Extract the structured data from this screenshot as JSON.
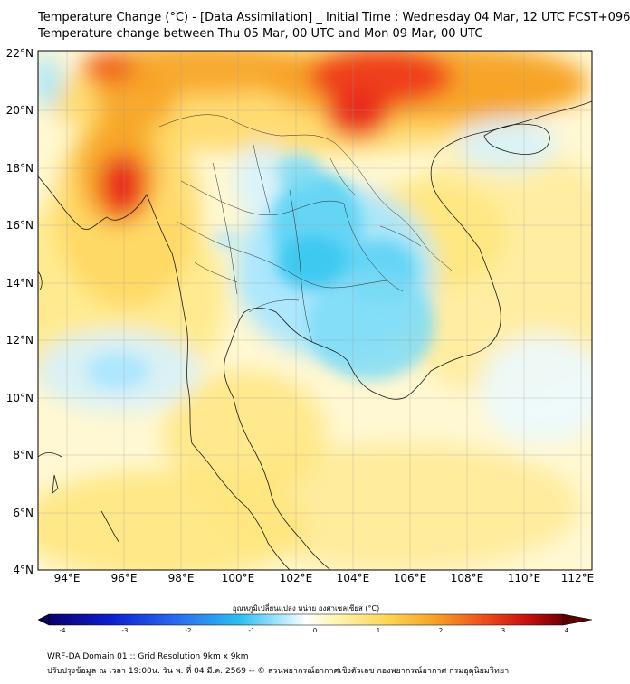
{
  "title_line1": "Temperature Change (°C) - [Data Assimilation] _ Initial Time : Wednesday 04 Mar, 12 UTC FCST+096",
  "title_line2": "Temperature change between Thu 05 Mar, 00 UTC and Mon 09 Mar, 00 UTC",
  "lat_labels": [
    "22°N",
    "20°N",
    "18°N",
    "16°N",
    "14°N",
    "12°N",
    "10°N",
    "8°N",
    "6°N",
    "4°N"
  ],
  "lon_labels": [
    "94°E",
    "96°E",
    "98°E",
    "100°E",
    "102°E",
    "104°E",
    "106°E",
    "108°E",
    "110°E",
    "112°E"
  ],
  "colorbar": {
    "label": "อุณหภูมิเปลี่ยนแปลง หน่วย องศาเซลเซียส (°C)",
    "ticks": [
      "-4",
      "-3",
      "-2",
      "-1",
      "0",
      "1",
      "2",
      "3",
      "4"
    ],
    "range": [
      -4,
      4
    ]
  },
  "footer_line1": "WRF-DA Domain 01 :: Grid Resolution 9km x 9km",
  "footer_line2": "ปรับปรุงข้อมูล ณ เวลา 19:00น. วัน พ. ที่ 04 มี.ค. 2569 -- © ส่วนพยากรณ์อากาศเชิงตัวเลข กองพยากรณ์อากาศ กรมอุตุนิยมวิทยา",
  "colors": {
    "strong_warm": "#e8231d",
    "warm": "#f7a223",
    "mild_warm": "#ffe57a",
    "neutral": "#ffffff",
    "mild_cool": "#a8e6ff",
    "cool": "#3cc8f0"
  }
}
